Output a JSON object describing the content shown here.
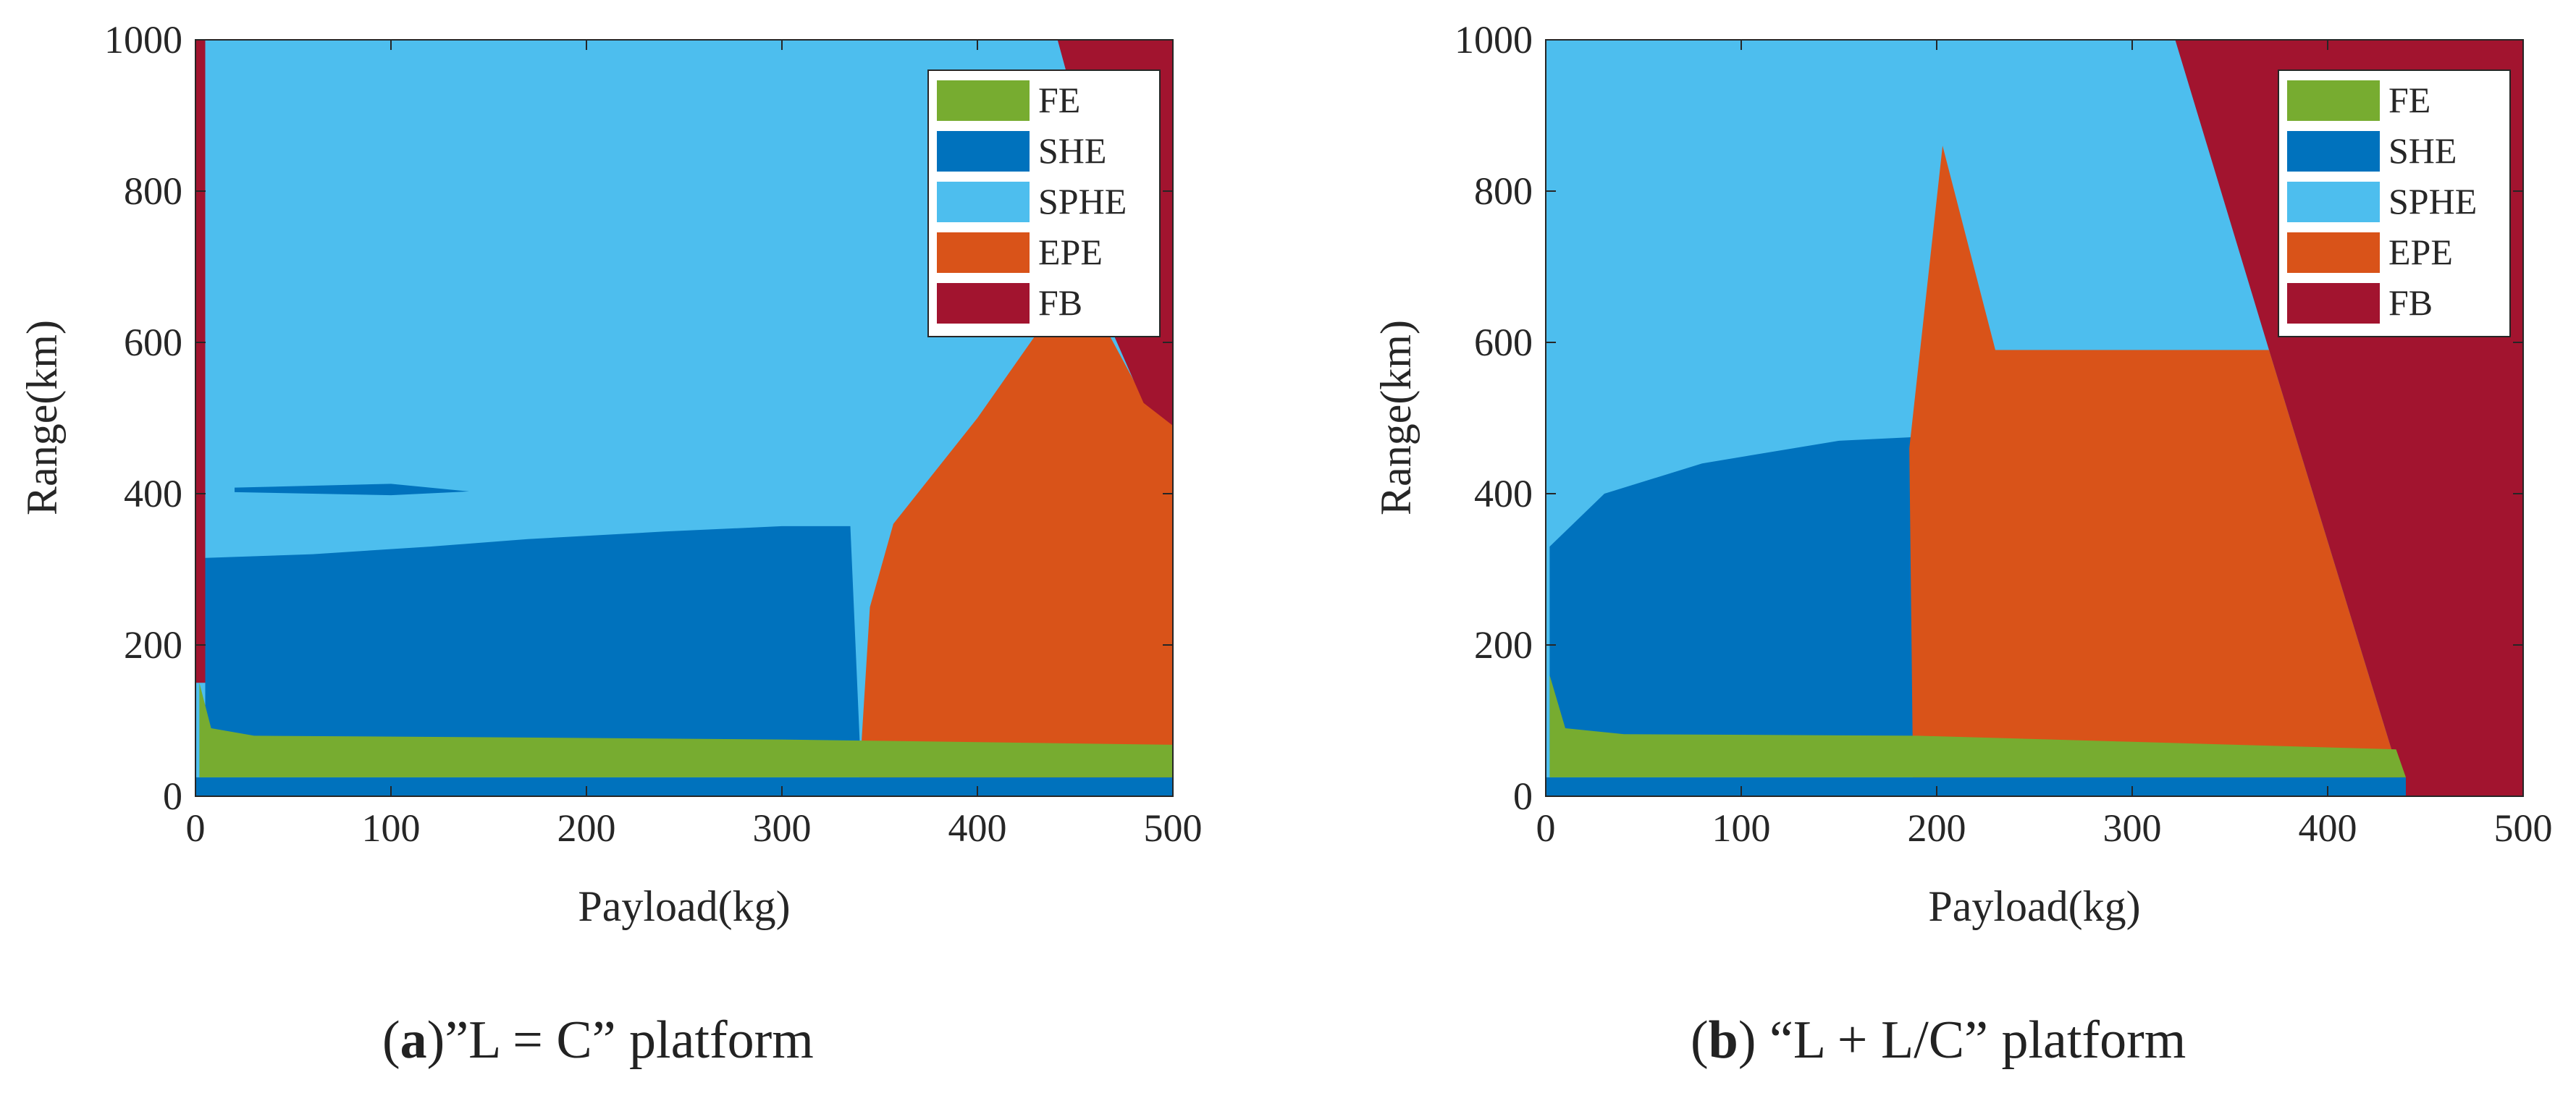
{
  "colors": {
    "FE": "#77AC30",
    "SHE": "#0072BD",
    "SPHE": "#4DBEEE",
    "EPE": "#D95319",
    "FB": "#A2142F"
  },
  "chart_data": [
    {
      "type": "area",
      "subtitle_id": "a",
      "subtitle_text": "”L = C” platform",
      "xlabel": "Payload(kg)",
      "ylabel": "Range(km)",
      "xlim": [
        0,
        500
      ],
      "ylim": [
        0,
        1000
      ],
      "xticks": [
        "0",
        "100",
        "200",
        "300",
        "400",
        "500"
      ],
      "yticks": [
        "0",
        "200",
        "400",
        "600",
        "800",
        "1000"
      ],
      "legend_position": "top-right",
      "legend": [
        "FE",
        "SHE",
        "SPHE",
        "EPE",
        "FB"
      ],
      "regions": [
        {
          "name": "SPHE",
          "polygon": [
            [
              0,
              0
            ],
            [
              500,
              0
            ],
            [
              500,
              1000
            ],
            [
              0,
              1000
            ]
          ]
        },
        {
          "name": "SHE",
          "polygon": [
            [
              5,
              60
            ],
            [
              5,
              315
            ],
            [
              60,
              320
            ],
            [
              120,
              330
            ],
            [
              170,
              340
            ],
            [
              240,
              350
            ],
            [
              300,
              357
            ],
            [
              335,
              357
            ],
            [
              340,
              60
            ]
          ]
        },
        {
          "name": "SHE",
          "polygon": [
            [
              20,
              408
            ],
            [
              100,
              413
            ],
            [
              140,
              403
            ],
            [
              100,
              398
            ],
            [
              20,
              402
            ]
          ]
        },
        {
          "name": "EPE",
          "polygon": [
            [
              339,
              0
            ],
            [
              345,
              250
            ],
            [
              357,
              360
            ],
            [
              400,
              500
            ],
            [
              438,
              640
            ],
            [
              458,
              655
            ],
            [
              482,
              540
            ],
            [
              500,
              545
            ],
            [
              500,
              0
            ]
          ]
        },
        {
          "name": "FB",
          "polygon": [
            [
              441,
              1000
            ],
            [
              500,
              1000
            ],
            [
              500,
              490
            ],
            [
              485,
              520
            ],
            [
              468,
              620
            ],
            [
              478,
              650
            ]
          ]
        },
        {
          "name": "FB",
          "polygon": [
            [
              0,
              150
            ],
            [
              0,
              1000
            ],
            [
              5,
              1000
            ],
            [
              5,
              150
            ]
          ]
        },
        {
          "name": "SHE",
          "polygon": [
            [
              0,
              0
            ],
            [
              500,
              0
            ],
            [
              500,
              25
            ],
            [
              340,
              25
            ],
            [
              0,
              25
            ]
          ]
        },
        {
          "name": "FE",
          "polygon": [
            [
              2,
              25
            ],
            [
              2,
              150
            ],
            [
              8,
              90
            ],
            [
              30,
              80
            ],
            [
              150,
              78
            ],
            [
              300,
              75
            ],
            [
              500,
              68
            ],
            [
              500,
              25
            ],
            [
              300,
              25
            ],
            [
              30,
              25
            ]
          ]
        }
      ]
    },
    {
      "type": "area",
      "subtitle_id": "b",
      "subtitle_text": "“L + L/C” platform",
      "xlabel": "Payload(kg)",
      "ylabel": "Range(km)",
      "xlim": [
        0,
        500
      ],
      "ylim": [
        0,
        1000
      ],
      "xticks": [
        "0",
        "100",
        "200",
        "300",
        "400",
        "500"
      ],
      "yticks": [
        "0",
        "200",
        "400",
        "600",
        "800",
        "1000"
      ],
      "legend_position": "top-right",
      "legend": [
        "FE",
        "SHE",
        "SPHE",
        "EPE",
        "FB"
      ],
      "regions": [
        {
          "name": "SPHE",
          "polygon": [
            [
              0,
              0
            ],
            [
              500,
              0
            ],
            [
              500,
              1000
            ],
            [
              0,
              1000
            ]
          ]
        },
        {
          "name": "SHE",
          "polygon": [
            [
              2,
              60
            ],
            [
              2,
              330
            ],
            [
              30,
              400
            ],
            [
              80,
              440
            ],
            [
              150,
              470
            ],
            [
              190,
              475
            ],
            [
              188,
              60
            ]
          ]
        },
        {
          "name": "EPE",
          "polygon": [
            [
              188,
              0
            ],
            [
              186,
              460
            ],
            [
              203,
              860
            ],
            [
              230,
              590
            ],
            [
              370,
              590
            ],
            [
              440,
              0
            ]
          ]
        },
        {
          "name": "FB",
          "polygon": [
            [
              322,
              1000
            ],
            [
              500,
              1000
            ],
            [
              500,
              0
            ],
            [
              440,
              0
            ],
            [
              370,
              590
            ]
          ]
        },
        {
          "name": "SHE",
          "polygon": [
            [
              0,
              0
            ],
            [
              440,
              0
            ],
            [
              440,
              25
            ],
            [
              0,
              25
            ]
          ]
        },
        {
          "name": "FE",
          "polygon": [
            [
              2,
              25
            ],
            [
              2,
              160
            ],
            [
              10,
              90
            ],
            [
              40,
              82
            ],
            [
              190,
              80
            ],
            [
              300,
              72
            ],
            [
              435,
              62
            ],
            [
              440,
              25
            ]
          ]
        }
      ]
    }
  ]
}
